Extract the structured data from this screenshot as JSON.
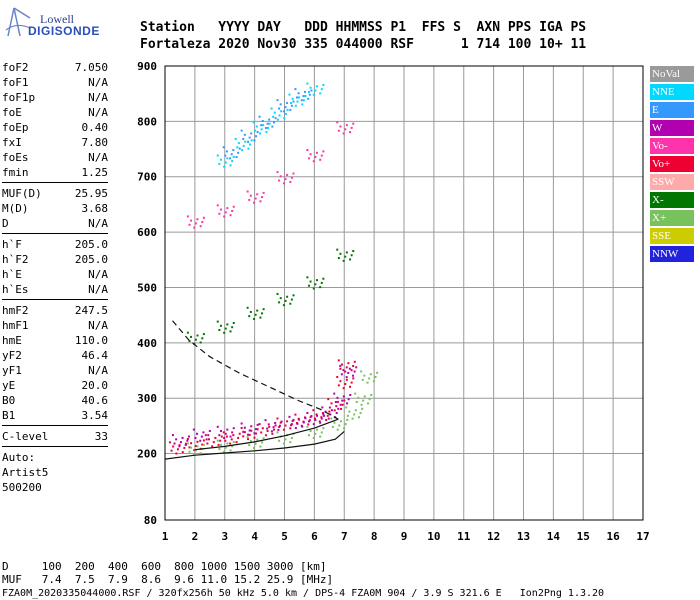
{
  "logo": {
    "line1": "Lowell",
    "line2": "DIGISONDE"
  },
  "header": {
    "row1": "Station   YYYY DAY   DDD HHMMSS P1  FFS S  AXN PPS IGA PS",
    "row2": "Fortaleza 2020 Nov30 335 044000 RSF      1 714 100 10+ 11"
  },
  "params": [
    {
      "k": "foF2",
      "v": "7.050"
    },
    {
      "k": "foF1",
      "v": "N/A"
    },
    {
      "k": "foF1p",
      "v": "N/A"
    },
    {
      "k": "foE",
      "v": "N/A"
    },
    {
      "k": "foEp",
      "v": "0.40"
    },
    {
      "k": "fxI",
      "v": "7.80"
    },
    {
      "k": "foEs",
      "v": "N/A"
    },
    {
      "k": "fmin",
      "v": "1.25"
    },
    {
      "sep": true
    },
    {
      "k": "MUF(D)",
      "v": "25.95"
    },
    {
      "k": "M(D)",
      "v": "3.68"
    },
    {
      "k": "D",
      "v": "N/A"
    },
    {
      "sep": true
    },
    {
      "k": "h`F",
      "v": "205.0"
    },
    {
      "k": "h`F2",
      "v": "205.0"
    },
    {
      "k": "h`E",
      "v": "N/A"
    },
    {
      "k": "h`Es",
      "v": "N/A"
    },
    {
      "sep": true
    },
    {
      "k": "hmF2",
      "v": "247.5"
    },
    {
      "k": "hmF1",
      "v": "N/A"
    },
    {
      "k": "hmE",
      "v": "110.0"
    },
    {
      "k": "yF2",
      "v": "46.4"
    },
    {
      "k": "yF1",
      "v": "N/A"
    },
    {
      "k": "yE",
      "v": "20.0"
    },
    {
      "k": "B0",
      "v": "40.6"
    },
    {
      "k": "B1",
      "v": "3.54"
    },
    {
      "sep": true
    },
    {
      "k": "C-level",
      "v": "33"
    },
    {
      "sep": true
    },
    {
      "k": "Auto:",
      "v": ""
    },
    {
      "k": "Artist5",
      "v": ""
    },
    {
      "k": "500200",
      "v": ""
    }
  ],
  "legend": [
    {
      "label": "NoVal",
      "color": "#9a9a9a"
    },
    {
      "label": "NNE",
      "color": "#00d8ff"
    },
    {
      "label": "E",
      "color": "#3399ff"
    },
    {
      "label": "W",
      "color": "#b000b0"
    },
    {
      "label": "Vo-",
      "color": "#ff33aa"
    },
    {
      "label": "Vo+",
      "color": "#ee0033"
    },
    {
      "label": "SSW",
      "color": "#ffaaaa"
    },
    {
      "label": "X-",
      "color": "#007700"
    },
    {
      "label": "X+",
      "color": "#77c25c"
    },
    {
      "label": "SSE",
      "color": "#cccc00"
    },
    {
      "label": "NNW",
      "color": "#2222dd"
    }
  ],
  "footer": {
    "line1": "D     100  200  400  600  800 1000 1500 3000 [km]",
    "line2": "MUF   7.4  7.5  7.9  8.6  9.6 11.0 15.2 25.9 [MHz]",
    "line3": "FZA0M_2020335044000.RSF / 320fx256h 50 kHz 5.0 km / DPS-4 FZA0M 904 / 3.9 S 321.6 E   Ion2Png 1.3.20"
  },
  "chart_data": {
    "type": "scatter",
    "xlim": [
      1,
      17
    ],
    "ylim": [
      80,
      900
    ],
    "xticks": [
      1,
      2,
      3,
      4,
      5,
      6,
      7,
      8,
      9,
      10,
      11,
      12,
      13,
      14,
      15,
      16,
      17
    ],
    "yticks": [
      80,
      200,
      300,
      400,
      500,
      600,
      700,
      800,
      900
    ],
    "grid": true,
    "series": [
      {
        "name": "Vo+",
        "color": "#ee0033",
        "x": [
          1.4,
          2.0,
          2.6,
          3.2,
          3.8,
          4.4,
          5.0,
          5.6,
          6.2,
          6.7,
          7.0,
          7.05
        ],
        "y": [
          212,
          218,
          225,
          230,
          238,
          245,
          255,
          262,
          270,
          290,
          330,
          360
        ]
      },
      {
        "name": "W",
        "color": "#b000b0",
        "x": [
          1.5,
          2.2,
          3.0,
          3.8,
          4.6,
          5.4,
          6.0,
          6.5,
          6.9,
          7.1
        ],
        "y": [
          225,
          235,
          240,
          246,
          252,
          258,
          265,
          275,
          300,
          350
        ]
      },
      {
        "name": "X+",
        "color": "#77c25c",
        "x": [
          2.0,
          3.0,
          4.0,
          5.0,
          6.0,
          6.8,
          7.3,
          7.6,
          7.8
        ],
        "y": [
          210,
          215,
          222,
          230,
          240,
          255,
          275,
          300,
          340
        ]
      },
      {
        "name": "NNE",
        "color": "#00d8ff",
        "x": [
          3.0,
          3.6,
          4.2,
          4.8,
          5.4,
          6.0
        ],
        "y": [
          730,
          760,
          790,
          815,
          840,
          860
        ]
      },
      {
        "name": "E",
        "color": "#3399ff",
        "x": [
          3.2,
          3.8,
          4.4,
          5.0,
          5.6
        ],
        "y": [
          745,
          775,
          800,
          830,
          850
        ]
      },
      {
        "name": "X-",
        "color": "#007700",
        "x": [
          2.0,
          3.0,
          4.0,
          5.0,
          6.0,
          7.0
        ],
        "y": [
          410,
          430,
          455,
          480,
          510,
          560
        ]
      },
      {
        "name": "Vo-",
        "color": "#ff33aa",
        "x": [
          2.0,
          3.0,
          4.0,
          5.0,
          6.0,
          7.0
        ],
        "y": [
          620,
          640,
          665,
          700,
          740,
          790
        ]
      }
    ],
    "curves": [
      {
        "name": "profile",
        "style": "solid",
        "x": [
          1.0,
          2.0,
          3.0,
          4.0,
          5.0,
          6.0,
          6.7,
          7.0
        ],
        "y": [
          190,
          197,
          201,
          205,
          210,
          217,
          226,
          240
        ]
      },
      {
        "name": "profile-upper",
        "style": "solid",
        "x": [
          2.0,
          3.0,
          4.0,
          5.0,
          6.0,
          6.8
        ],
        "y": [
          207,
          213,
          221,
          232,
          246,
          262
        ]
      },
      {
        "name": "topside",
        "style": "dashed",
        "x": [
          1.25,
          1.8,
          2.5,
          3.5,
          4.5,
          5.5,
          6.2,
          6.8
        ],
        "y": [
          440,
          405,
          375,
          345,
          320,
          295,
          280,
          262
        ]
      }
    ]
  }
}
